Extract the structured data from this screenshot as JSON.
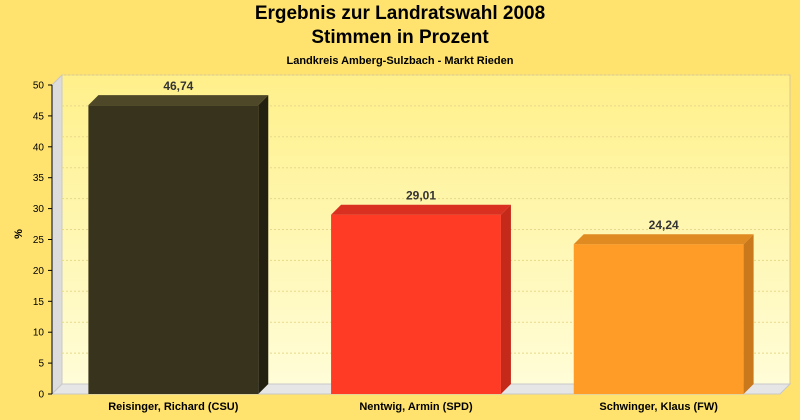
{
  "chart_data": {
    "type": "bar",
    "title": "Ergebnis zur Landratswahl 2008",
    "title_line2": "Stimmen in Prozent",
    "subtitle": "Landkreis Amberg-Sulzbach - Markt Rieden",
    "ylabel": "%",
    "xlabel": "",
    "ylim": [
      0,
      50
    ],
    "yticks": [
      "0",
      "5",
      "10",
      "15",
      "20",
      "25",
      "30",
      "35",
      "40",
      "45",
      "50"
    ],
    "grid": true,
    "categories": [
      "Reisinger, Richard (CSU)",
      "Nentwig, Armin (SPD)",
      "Schwinger, Klaus (FW)"
    ],
    "values": [
      46.74,
      29.01,
      24.24
    ],
    "value_labels": [
      "46,74",
      "29,01",
      "24,24"
    ],
    "colors": [
      "#38331c",
      "#ff3a25",
      "#ff9c28"
    ],
    "side_colors": [
      "#242011",
      "#c4291a",
      "#c9781c"
    ],
    "top_colors": [
      "#4e4828",
      "#d93022",
      "#e08a22"
    ]
  }
}
